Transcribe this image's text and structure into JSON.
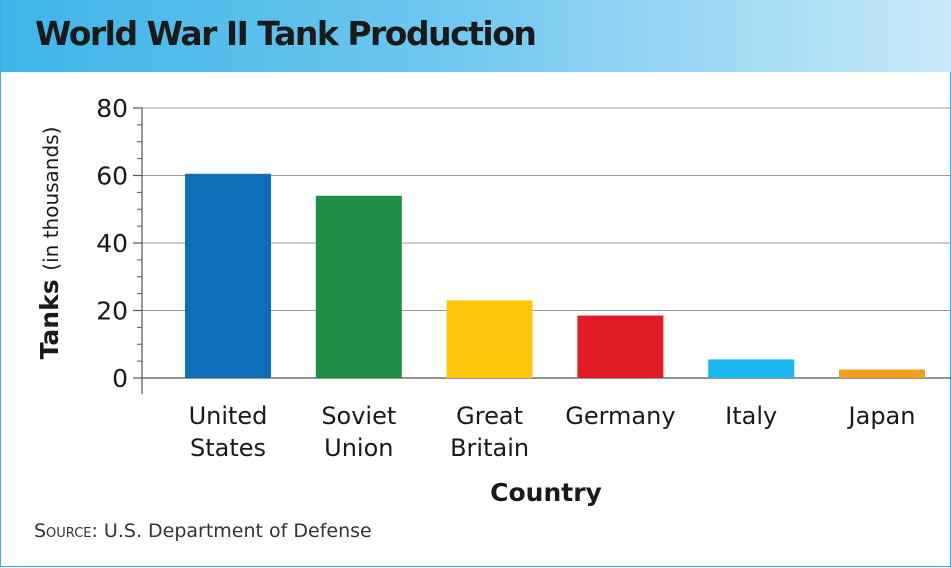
{
  "title": "World War II Tank Production",
  "source": {
    "prefix": "Source",
    "text": ": U.S. Department of Defense"
  },
  "colors": {
    "title_bar": "#5ac0ec",
    "frame_border": "#3fa8dc",
    "grid": "#9a9a9a",
    "text": "#1a1a1a"
  },
  "chart_data": {
    "type": "bar",
    "categories": [
      [
        "United",
        "States"
      ],
      [
        "Soviet",
        "Union"
      ],
      [
        "Great",
        "Britain"
      ],
      [
        "Germany"
      ],
      [
        "Italy"
      ],
      [
        "Japan"
      ]
    ],
    "values": [
      60.5,
      54,
      23,
      18.5,
      5.5,
      2.5
    ],
    "bar_colors": [
      "#0e6fb8",
      "#1e8f47",
      "#fcc70a",
      "#e21c26",
      "#1bb6ec",
      "#f29e1c"
    ],
    "ylabel_main": "Tanks",
    "ylabel_sub": "(in thousands)",
    "xlabel": "Country",
    "ylim": [
      0,
      80
    ],
    "yticks": [
      0,
      20,
      40,
      60,
      80
    ],
    "grid": true
  }
}
